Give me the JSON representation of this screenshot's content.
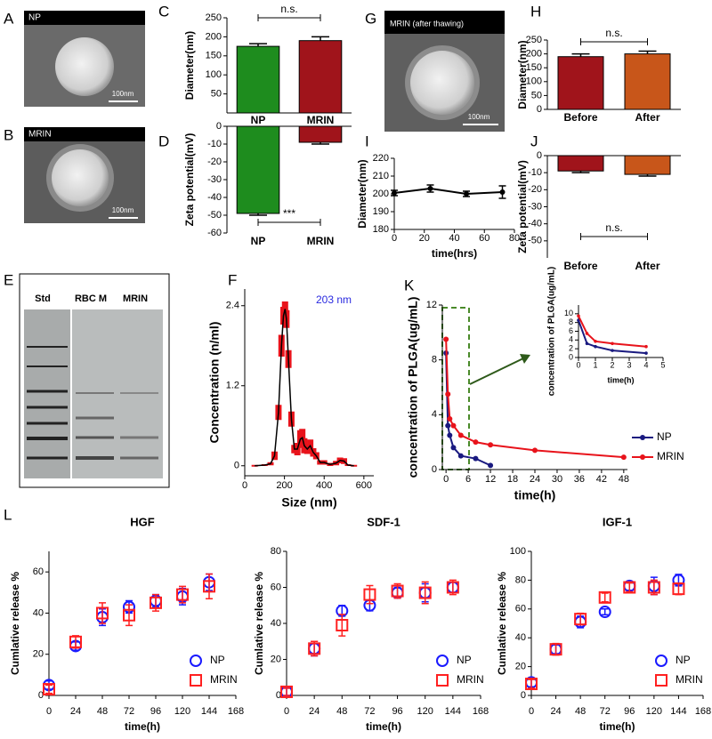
{
  "images": [
    {
      "letter": "A",
      "label": "NP",
      "scale": "100nm"
    },
    {
      "letter": "B",
      "label": "MRIN",
      "scale": "100nm"
    },
    {
      "letter": "G",
      "label": "MRIN (after thawing)",
      "scale": "100nm"
    }
  ],
  "gel": {
    "letter": "E",
    "lanes": [
      "Std",
      "RBC M",
      "MRIN"
    ]
  },
  "chart_data": [
    {
      "type": "bar",
      "panel": "C",
      "ylabel": "Diameter(nm)",
      "categories": [
        "NP",
        "MRIN"
      ],
      "values": [
        175,
        190
      ],
      "errors": [
        7,
        10
      ],
      "colors": [
        "#1e8c1e",
        "#a0141b"
      ],
      "ylim": [
        0,
        250
      ],
      "yticks": [
        50,
        100,
        150,
        200,
        250
      ],
      "annotation": "n.s."
    },
    {
      "type": "bar",
      "panel": "D",
      "ylabel": "Zeta potential(mV)",
      "categories": [
        "NP",
        "MRIN"
      ],
      "values": [
        -49,
        -9
      ],
      "errors": [
        1,
        1
      ],
      "colors": [
        "#1e8c1e",
        "#a0141b"
      ],
      "ylim": [
        -60,
        0
      ],
      "yticks": [
        -60,
        -50,
        -40,
        -30,
        -20,
        -10,
        0
      ],
      "annotation": "***"
    },
    {
      "type": "bar",
      "panel": "H",
      "ylabel": "Diameter(nm)",
      "categories": [
        "Before",
        "After"
      ],
      "values": [
        190,
        200
      ],
      "errors": [
        10,
        10
      ],
      "colors": [
        "#a0141b",
        "#c8561a"
      ],
      "ylim": [
        0,
        250
      ],
      "yticks": [
        0,
        50,
        100,
        150,
        200,
        250
      ],
      "annotation": "n.s."
    },
    {
      "type": "bar",
      "panel": "J",
      "ylabel": "Zeta potential(mV)",
      "categories": [
        "Before",
        "After"
      ],
      "values": [
        -9,
        -11
      ],
      "errors": [
        1,
        1
      ],
      "colors": [
        "#a0141b",
        "#c8561a"
      ],
      "ylim": [
        -60,
        0
      ],
      "yticks": [
        -50,
        -40,
        -30,
        -20,
        -10,
        0
      ],
      "annotation": "n.s."
    },
    {
      "type": "line",
      "panel": "I",
      "ylabel": "Diameter(nm)",
      "xlabel": "time(hrs)",
      "x": [
        0,
        24,
        48,
        72
      ],
      "xlim": [
        0,
        80
      ],
      "xticks": [
        0,
        20,
        40,
        60,
        80
      ],
      "ylim": [
        180,
        220
      ],
      "yticks": [
        180,
        190,
        200,
        210,
        220
      ],
      "series": [
        {
          "color": "#000000",
          "values": [
            200.5,
            203,
            200,
            201
          ],
          "errors": [
            1.5,
            2,
            1.5,
            3.5
          ]
        }
      ]
    },
    {
      "type": "line",
      "panel": "F",
      "ylabel": "Concentration (n/ml)",
      "xlabel": "Size (nm)",
      "annotation": "203 nm",
      "xlim": [
        0,
        650
      ],
      "xticks": [
        0,
        200,
        400,
        600
      ],
      "ylim": [
        -0.15,
        2.65
      ],
      "yticks": [
        0,
        1.2,
        2.4
      ],
      "x": [
        50,
        100,
        130,
        150,
        170,
        185,
        195,
        203,
        210,
        220,
        235,
        250,
        265,
        280,
        290,
        300,
        315,
        330,
        345,
        360,
        380,
        400,
        430,
        460,
        480,
        500,
        520,
        550
      ],
      "series": [
        {
          "color": "#000000",
          "band_color": "#e8131b",
          "values": [
            0,
            0.01,
            0.03,
            0.15,
            0.8,
            1.8,
            2.25,
            2.35,
            2.2,
            1.6,
            0.7,
            0.25,
            0.25,
            0.4,
            0.42,
            0.3,
            0.25,
            0.3,
            0.2,
            0.15,
            0.05,
            0.05,
            0.02,
            0.04,
            0.08,
            0.07,
            0.01,
            0
          ],
          "errors": [
            0,
            0,
            0.01,
            0.05,
            0.1,
            0.15,
            0.12,
            0.1,
            0.12,
            0.12,
            0.1,
            0.05,
            0.08,
            0.12,
            0.12,
            0.1,
            0.06,
            0.08,
            0.05,
            0.04,
            0.02,
            0.02,
            0.01,
            0.02,
            0.03,
            0.03,
            0,
            0
          ]
        }
      ]
    },
    {
      "type": "line",
      "panel": "K",
      "ylabel": "concentration of PLGA(ug/mL)",
      "xlabel": "time(h)",
      "x": [
        0,
        0.5,
        1,
        2,
        4,
        8,
        12,
        24,
        48
      ],
      "xlim": [
        -1,
        49
      ],
      "xticks": [
        0,
        6,
        12,
        18,
        24,
        30,
        36,
        42,
        48
      ],
      "ylim": [
        0,
        12
      ],
      "yticks": [
        0,
        4,
        8,
        12
      ],
      "legend": "lower right",
      "series": [
        {
          "name": "NP",
          "color": "#1a1a80",
          "values": [
            8.5,
            3.2,
            2.5,
            1.6,
            1.0,
            0.8,
            0.3,
            null,
            null
          ]
        },
        {
          "name": "MRIN",
          "color": "#e8131b",
          "values": [
            9.5,
            5.5,
            3.7,
            3.2,
            2.5,
            2.0,
            1.8,
            1.4,
            0.9
          ]
        }
      ]
    },
    {
      "type": "line",
      "ylabel": "concentration of PLGA(ug/mL)",
      "xlabel": "time(h)",
      "x": [
        0,
        0.5,
        1,
        2,
        4
      ],
      "xlim": [
        0,
        5
      ],
      "xticks": [
        0,
        1,
        2,
        3,
        4,
        5
      ],
      "ylim": [
        0,
        12
      ],
      "yticks": [
        0,
        2,
        4,
        6,
        8,
        10
      ],
      "series": [
        {
          "color": "#1a1a80",
          "values": [
            8.5,
            3.2,
            2.5,
            1.6,
            1.0
          ]
        },
        {
          "color": "#e8131b",
          "values": [
            9.5,
            5.5,
            3.7,
            3.2,
            2.5
          ]
        }
      ]
    },
    {
      "type": "scatter",
      "panel": "L",
      "title": "HGF",
      "ylabel": "Cumlative release %",
      "xlabel": "time(h)",
      "x": [
        0,
        24,
        48,
        72,
        96,
        120,
        144
      ],
      "xlim": [
        0,
        168
      ],
      "xticks": [
        0,
        24,
        48,
        72,
        96,
        120,
        144,
        168
      ],
      "ylim": [
        0,
        70
      ],
      "yticks": [
        0,
        20,
        40,
        60
      ],
      "legend": "lower right",
      "series": [
        {
          "name": "NP",
          "color": "#1a1aff",
          "marker": "circle",
          "values": [
            5,
            24,
            38,
            43,
            46,
            48,
            55
          ],
          "errors": [
            2,
            2,
            4,
            3,
            3,
            4,
            4
          ]
        },
        {
          "name": "MRIN",
          "color": "#ff2020",
          "marker": "square",
          "values": [
            3,
            26,
            40,
            39,
            45,
            49,
            53
          ],
          "errors": [
            2,
            3,
            5,
            5,
            4,
            4,
            6
          ]
        }
      ]
    },
    {
      "type": "scatter",
      "title": "SDF-1",
      "ylabel": "Cumlative release %",
      "xlabel": "time(h)",
      "x": [
        0,
        24,
        48,
        72,
        96,
        120,
        144
      ],
      "xlim": [
        0,
        168
      ],
      "xticks": [
        0,
        24,
        48,
        72,
        96,
        120,
        144,
        168
      ],
      "ylim": [
        0,
        80
      ],
      "yticks": [
        0,
        20,
        40,
        60,
        80
      ],
      "legend": "lower right",
      "series": [
        {
          "name": "NP",
          "color": "#1a1aff",
          "marker": "circle",
          "values": [
            2,
            26,
            47,
            50,
            57,
            57,
            60
          ],
          "errors": [
            2,
            4,
            3,
            3,
            3,
            5,
            3
          ]
        },
        {
          "name": "MRIN",
          "color": "#ff2020",
          "marker": "square",
          "values": [
            2,
            26,
            39,
            56,
            58,
            57,
            60
          ],
          "errors": [
            2,
            4,
            6,
            5,
            4,
            6,
            4
          ]
        }
      ]
    },
    {
      "type": "scatter",
      "title": "IGF-1",
      "ylabel": "Cumlative release %",
      "xlabel": "time(h)",
      "x": [
        0,
        24,
        48,
        72,
        96,
        120,
        144
      ],
      "xlim": [
        0,
        168
      ],
      "xticks": [
        0,
        24,
        48,
        72,
        96,
        120,
        144,
        168
      ],
      "ylim": [
        0,
        100
      ],
      "yticks": [
        0,
        20,
        40,
        60,
        80,
        100
      ],
      "legend": "lower right",
      "series": [
        {
          "name": "NP",
          "color": "#1a1aff",
          "marker": "circle",
          "values": [
            9,
            32,
            51,
            58,
            76,
            76,
            80
          ],
          "errors": [
            3,
            3,
            4,
            2,
            3,
            6,
            4
          ]
        },
        {
          "name": "MRIN",
          "color": "#ff2020",
          "marker": "square",
          "values": [
            8,
            32,
            53,
            68,
            75,
            75,
            74
          ],
          "errors": [
            3,
            4,
            4,
            3,
            3,
            5,
            4
          ]
        }
      ]
    }
  ]
}
